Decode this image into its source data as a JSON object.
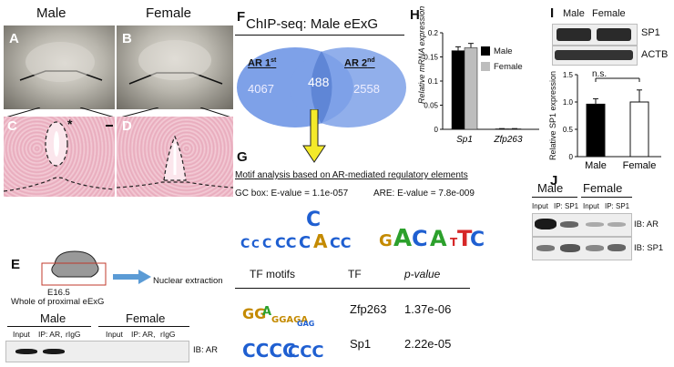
{
  "panelA": {
    "header_male": "Male",
    "header_female": "Female",
    "letters": [
      "A",
      "B",
      "C",
      "D"
    ],
    "asterisk": "*"
  },
  "panelE": {
    "letter": "E",
    "stage": "E16.5",
    "region": "Whole of proximal eExG",
    "step": "Nuclear extraction",
    "male": "Male",
    "female": "Female",
    "lanes": [
      "Input",
      "IP: AR,",
      "rIgG",
      "Input",
      "IP: AR,",
      "rIgG"
    ],
    "ib": "IB: AR"
  },
  "panelF": {
    "letter": "F",
    "title": "ChIP-seq: Male eExG",
    "left_label": "AR 1",
    "left_sup": "st",
    "right_label": "AR 2",
    "right_sup": "nd",
    "left_count": "4067",
    "overlap_count": "488",
    "right_count": "2558"
  },
  "panelG": {
    "letter": "G",
    "title": "Motif analysis based on AR-mediated regulatory elements",
    "gc_box": "GC box: E-value = 1.1e-057",
    "are": "ARE: E-value = 7.8e-009",
    "col_motifs": "TF motifs",
    "col_tf": "TF",
    "col_p": "p-value",
    "rows": [
      {
        "tf": "Zfp263",
        "p": "1.37e-06"
      },
      {
        "tf": "Sp1",
        "p": "2.22e-05"
      }
    ]
  },
  "panelH": {
    "letter": "H",
    "ylabel": "Relative mRNA expression",
    "legend": [
      "Male",
      "Female"
    ],
    "legend_colors": [
      "#000000",
      "#bdbdbd"
    ]
  },
  "panelI": {
    "letter": "I",
    "male": "Male",
    "female": "Female",
    "blot1": "SP1",
    "blot2": "ACTB",
    "ylabel": "Relative SP1 expression",
    "ns": "n.s."
  },
  "panelJ": {
    "letter": "J",
    "male": "Male",
    "female": "Female",
    "lanes": [
      "Input",
      "IP: SP1",
      "Input",
      "IP: SP1"
    ],
    "ib1": "IB: AR",
    "ib2": "IB: SP1"
  },
  "chart_data": [
    {
      "type": "bar",
      "panel": "H",
      "categories": [
        "Sp1",
        "Zfp263"
      ],
      "series": [
        {
          "name": "Male",
          "values": [
            0.163,
            0.001
          ],
          "errors": [
            0.008,
            0.0005
          ]
        },
        {
          "name": "Female",
          "values": [
            0.169,
            0.001
          ],
          "errors": [
            0.009,
            0.0005
          ]
        }
      ],
      "ylim": [
        0,
        0.2
      ],
      "yticks": [
        "0",
        "0.05",
        "0.1",
        "0.15",
        "0.2"
      ],
      "ylabel": "Relative mRNA expression"
    },
    {
      "type": "bar",
      "panel": "I",
      "categories": [
        "Male",
        "Female"
      ],
      "values": [
        0.96,
        1.0
      ],
      "errors": [
        0.1,
        0.22
      ],
      "ylim": [
        0,
        1.5
      ],
      "yticks": [
        "0",
        "0.5",
        "1.0",
        "1.5"
      ],
      "ylabel": "Relative SP1 expression"
    }
  ]
}
